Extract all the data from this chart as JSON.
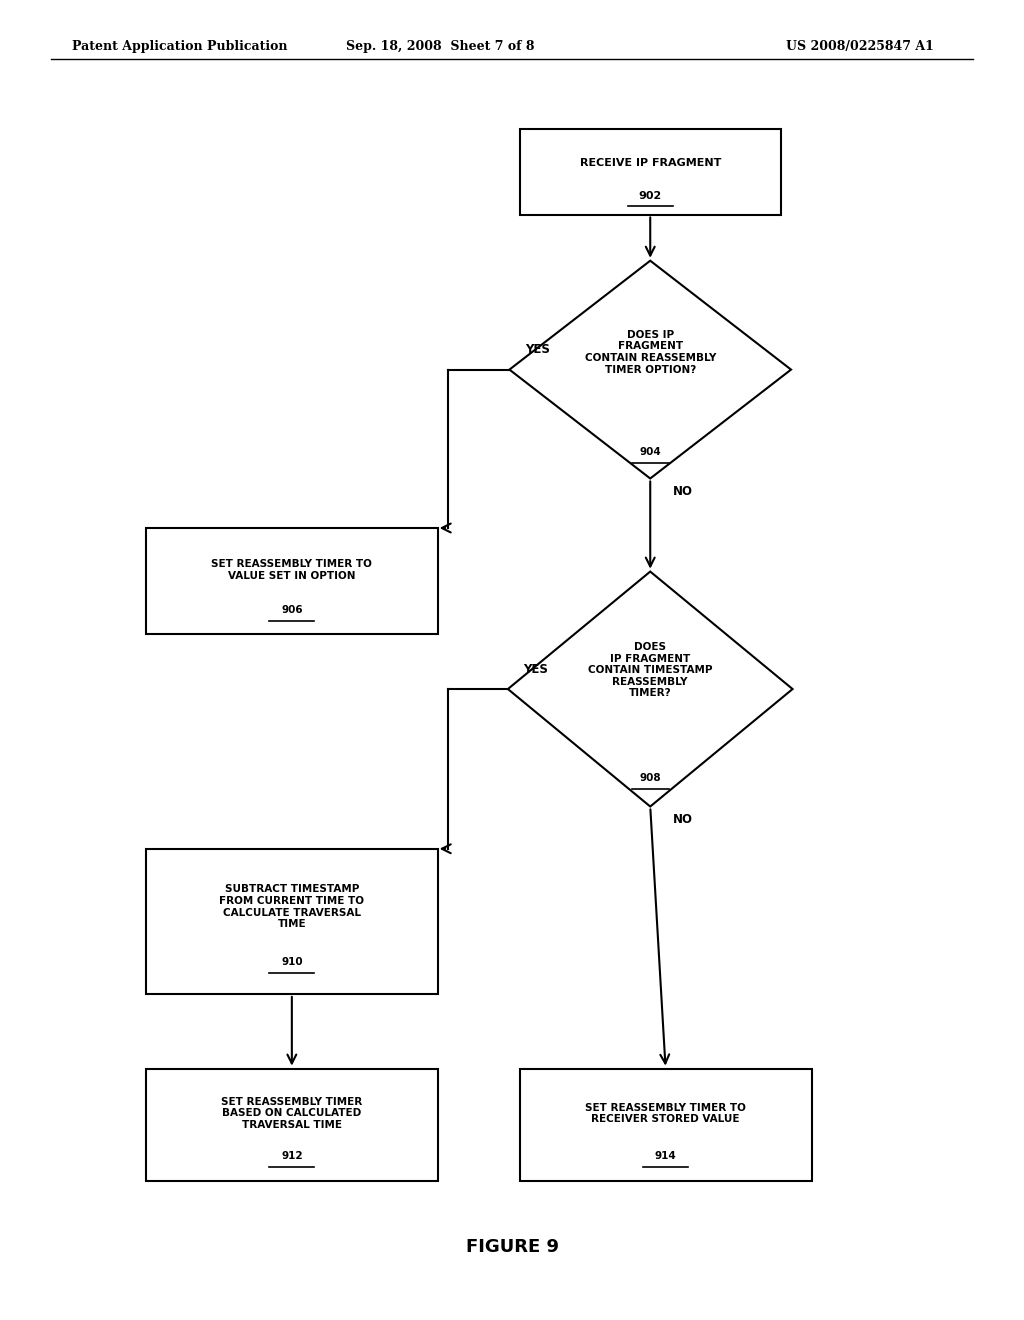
{
  "title": "FIGURE 9",
  "header_left": "Patent Application Publication",
  "header_mid": "Sep. 18, 2008  Sheet 7 of 8",
  "header_right": "US 2008/0225847 A1",
  "bg_color": "#ffffff"
}
